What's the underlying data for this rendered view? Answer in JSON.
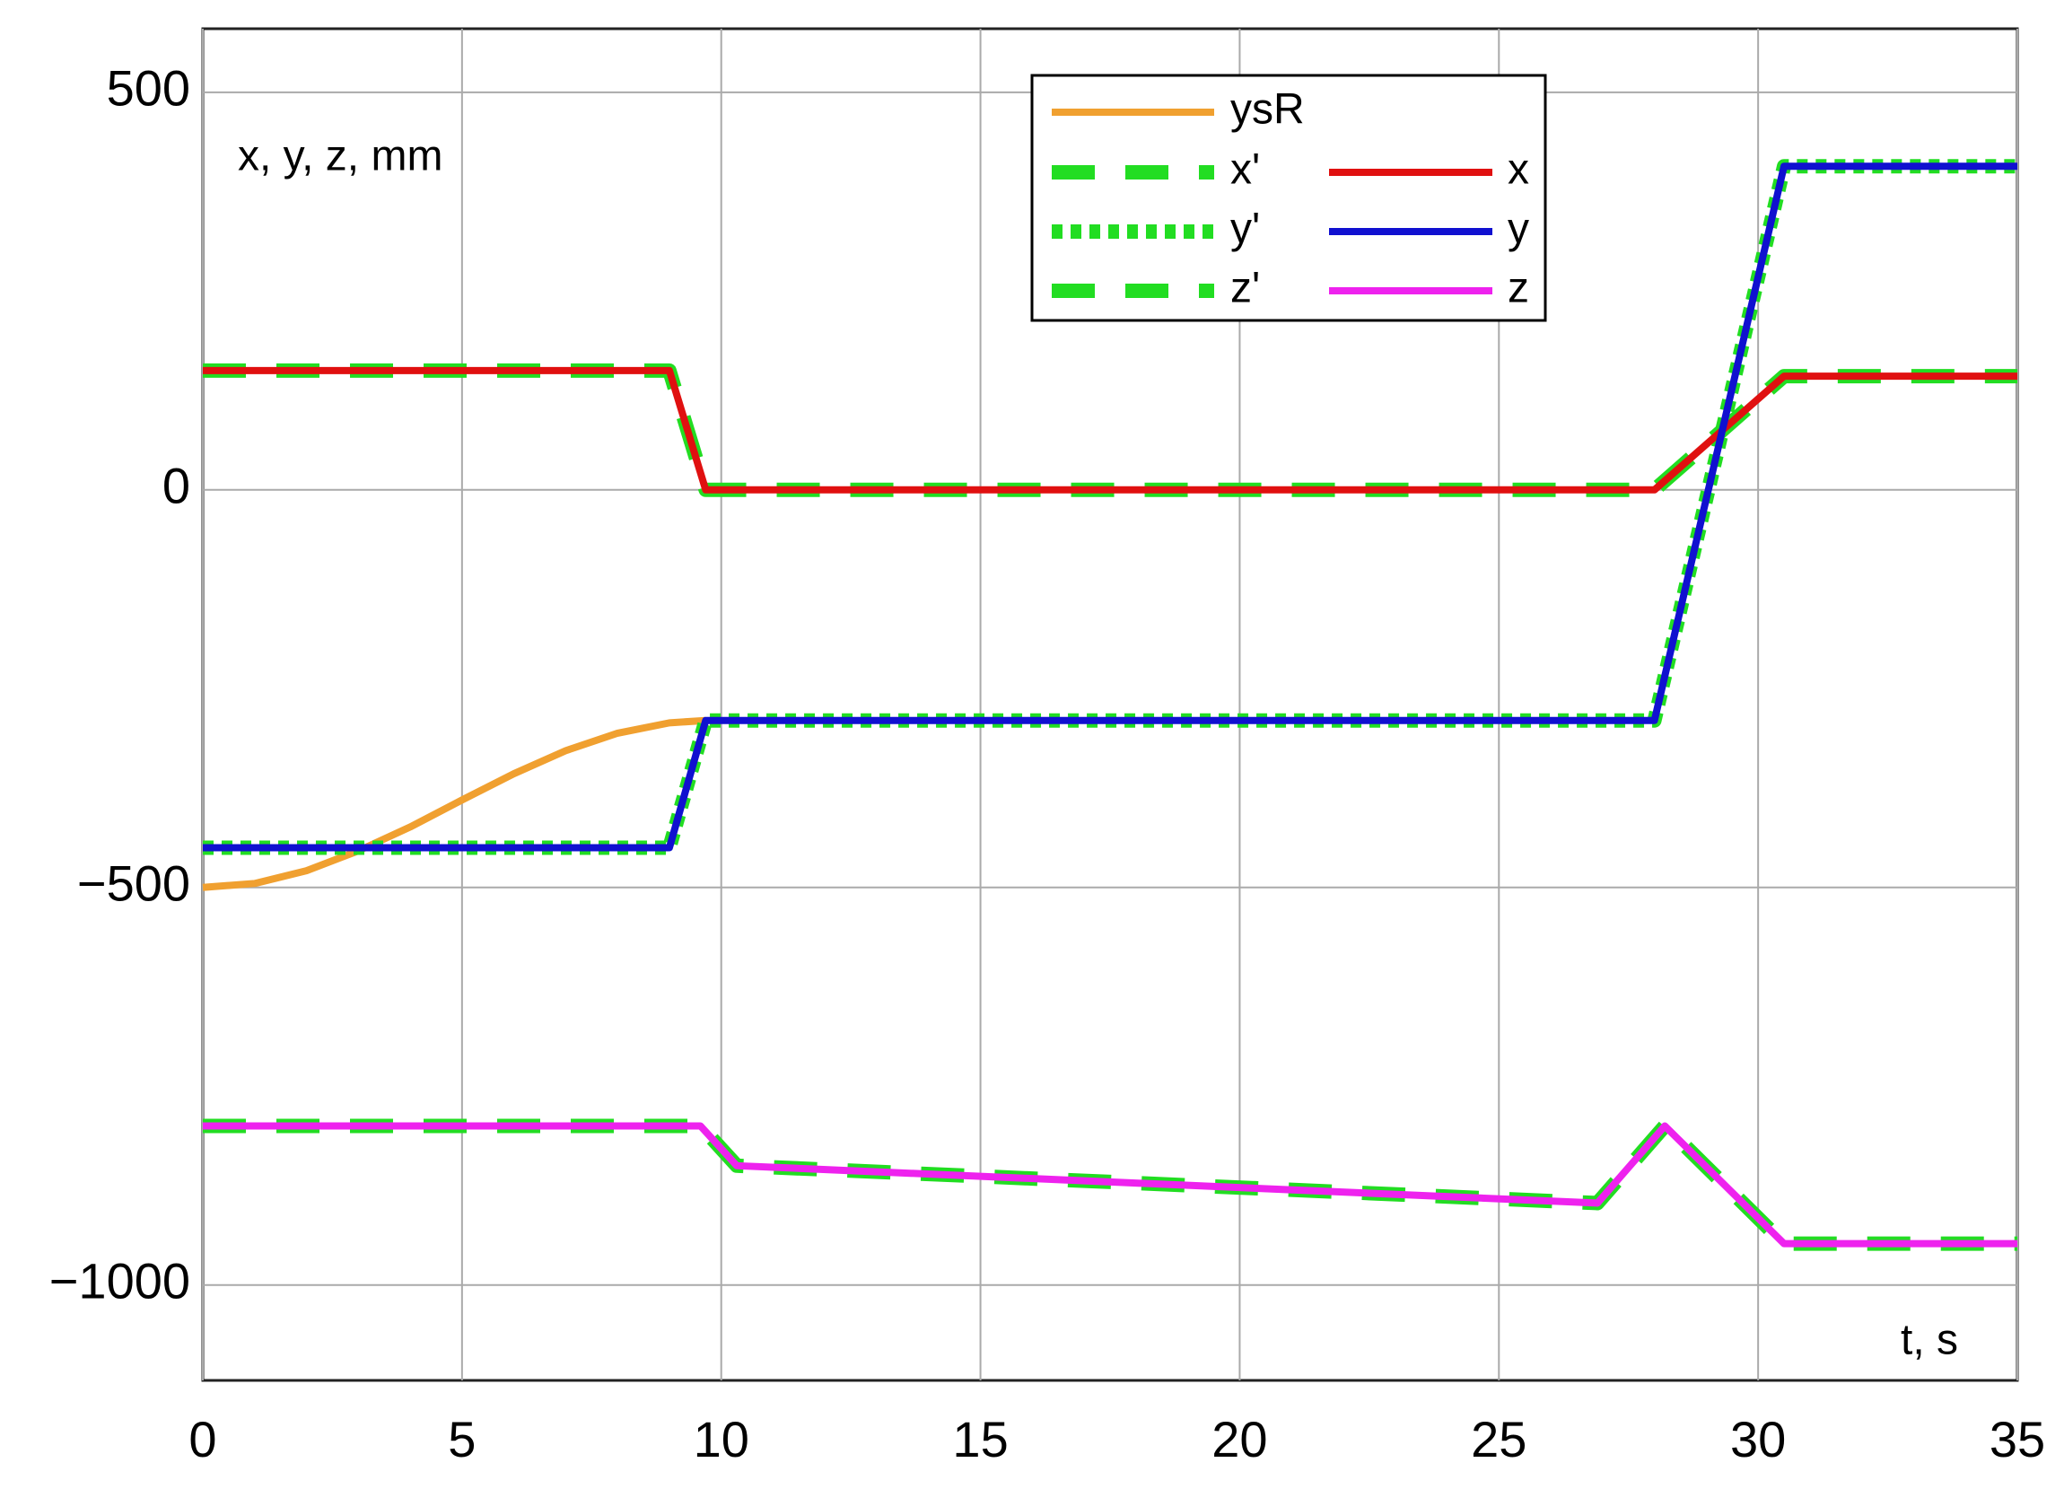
{
  "chart_data": {
    "type": "line",
    "y_axis_label": "x, y, z, mm",
    "x_axis_label": "t, s",
    "xlim": [
      0,
      35
    ],
    "xticks": [
      0,
      5,
      10,
      15,
      20,
      25,
      30,
      35
    ],
    "ylim": [
      -1120,
      580
    ],
    "yticks": [
      500,
      0,
      {
        "value": -500,
        "label": "−500"
      },
      {
        "value": -1000,
        "label": "−1000"
      }
    ],
    "grid": true,
    "series": [
      {
        "name": "ysR",
        "color": "#f0a030",
        "style": "solid",
        "x": [
          0,
          1,
          2,
          3,
          4,
          5,
          6,
          7,
          8,
          9,
          9.7
        ],
        "values": [
          -500,
          -495,
          -479,
          -454,
          -424,
          -390,
          -357,
          -328,
          -306,
          -293,
          -290
        ]
      },
      {
        "name": "x'",
        "color": "#22dd22",
        "style": "dashed",
        "x": [
          0,
          9,
          9.7,
          28,
          30.5,
          35
        ],
        "values": [
          150,
          150,
          0,
          0,
          143,
          143
        ]
      },
      {
        "name": "y'",
        "color": "#22dd22",
        "style": "dotted",
        "x": [
          0,
          9,
          9.7,
          28,
          30.5,
          35
        ],
        "values": [
          -450,
          -450,
          -290,
          -290,
          407,
          407
        ]
      },
      {
        "name": "z'",
        "color": "#22dd22",
        "style": "dashed",
        "x": [
          0,
          9.6,
          10.3,
          26.9,
          28.2,
          30.5,
          35
        ],
        "values": [
          -800,
          -800,
          -850,
          -897,
          -800,
          -948,
          -948
        ]
      },
      {
        "name": "x",
        "color": "#e01010",
        "style": "solid",
        "x": [
          0,
          9,
          9.7,
          28,
          30.5,
          35
        ],
        "values": [
          150,
          150,
          0,
          0,
          143,
          143
        ]
      },
      {
        "name": "y",
        "color": "#1010d0",
        "style": "solid",
        "x": [
          0,
          9,
          9.7,
          28,
          30.5,
          35
        ],
        "values": [
          -450,
          -450,
          -290,
          -290,
          407,
          407
        ]
      },
      {
        "name": "z",
        "color": "#ee22ee",
        "style": "solid",
        "x": [
          0,
          9.6,
          10.3,
          26.9,
          28.2,
          30.5,
          35
        ],
        "values": [
          -800,
          -800,
          -850,
          -897,
          -800,
          -948,
          -948
        ]
      }
    ]
  }
}
